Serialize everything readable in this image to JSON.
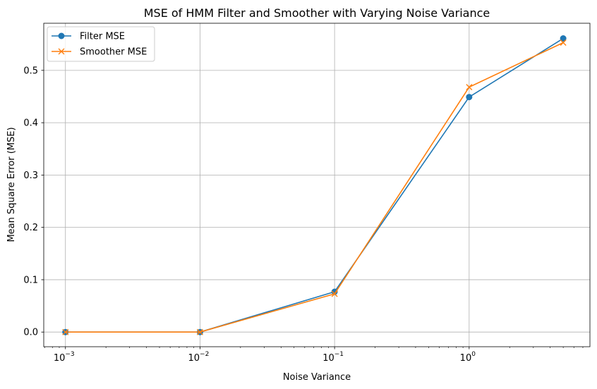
{
  "chart_data": {
    "type": "line",
    "title": "MSE of HMM Filter and Smoother with Varying Noise Variance",
    "xlabel": "Noise Variance",
    "ylabel": "Mean Square Error (MSE)",
    "xscale": "log",
    "xlim": [
      0.00069,
      7.9
    ],
    "ylim": [
      -0.028,
      0.59
    ],
    "grid": true,
    "legend_position": "top-left",
    "x": [
      0.001,
      0.01,
      0.1,
      1,
      5
    ],
    "x_ticks": [
      {
        "value": 0.001,
        "base": "10",
        "exp": "−3"
      },
      {
        "value": 0.01,
        "base": "10",
        "exp": "−2"
      },
      {
        "value": 0.1,
        "base": "10",
        "exp": "−1"
      },
      {
        "value": 1,
        "base": "10",
        "exp": "0"
      }
    ],
    "y_ticks": [
      {
        "value": 0.0,
        "label": "0.0"
      },
      {
        "value": 0.1,
        "label": "0.1"
      },
      {
        "value": 0.2,
        "label": "0.2"
      },
      {
        "value": 0.3,
        "label": "0.3"
      },
      {
        "value": 0.4,
        "label": "0.4"
      },
      {
        "value": 0.5,
        "label": "0.5"
      }
    ],
    "series": [
      {
        "name": "Filter MSE",
        "color": "#1f77b4",
        "marker": "circle",
        "values": [
          0.0,
          0.0,
          0.077,
          0.449,
          0.561
        ]
      },
      {
        "name": "Smoother MSE",
        "color": "#ff7f0e",
        "marker": "x",
        "values": [
          0.0,
          0.0,
          0.073,
          0.468,
          0.553
        ]
      }
    ]
  }
}
